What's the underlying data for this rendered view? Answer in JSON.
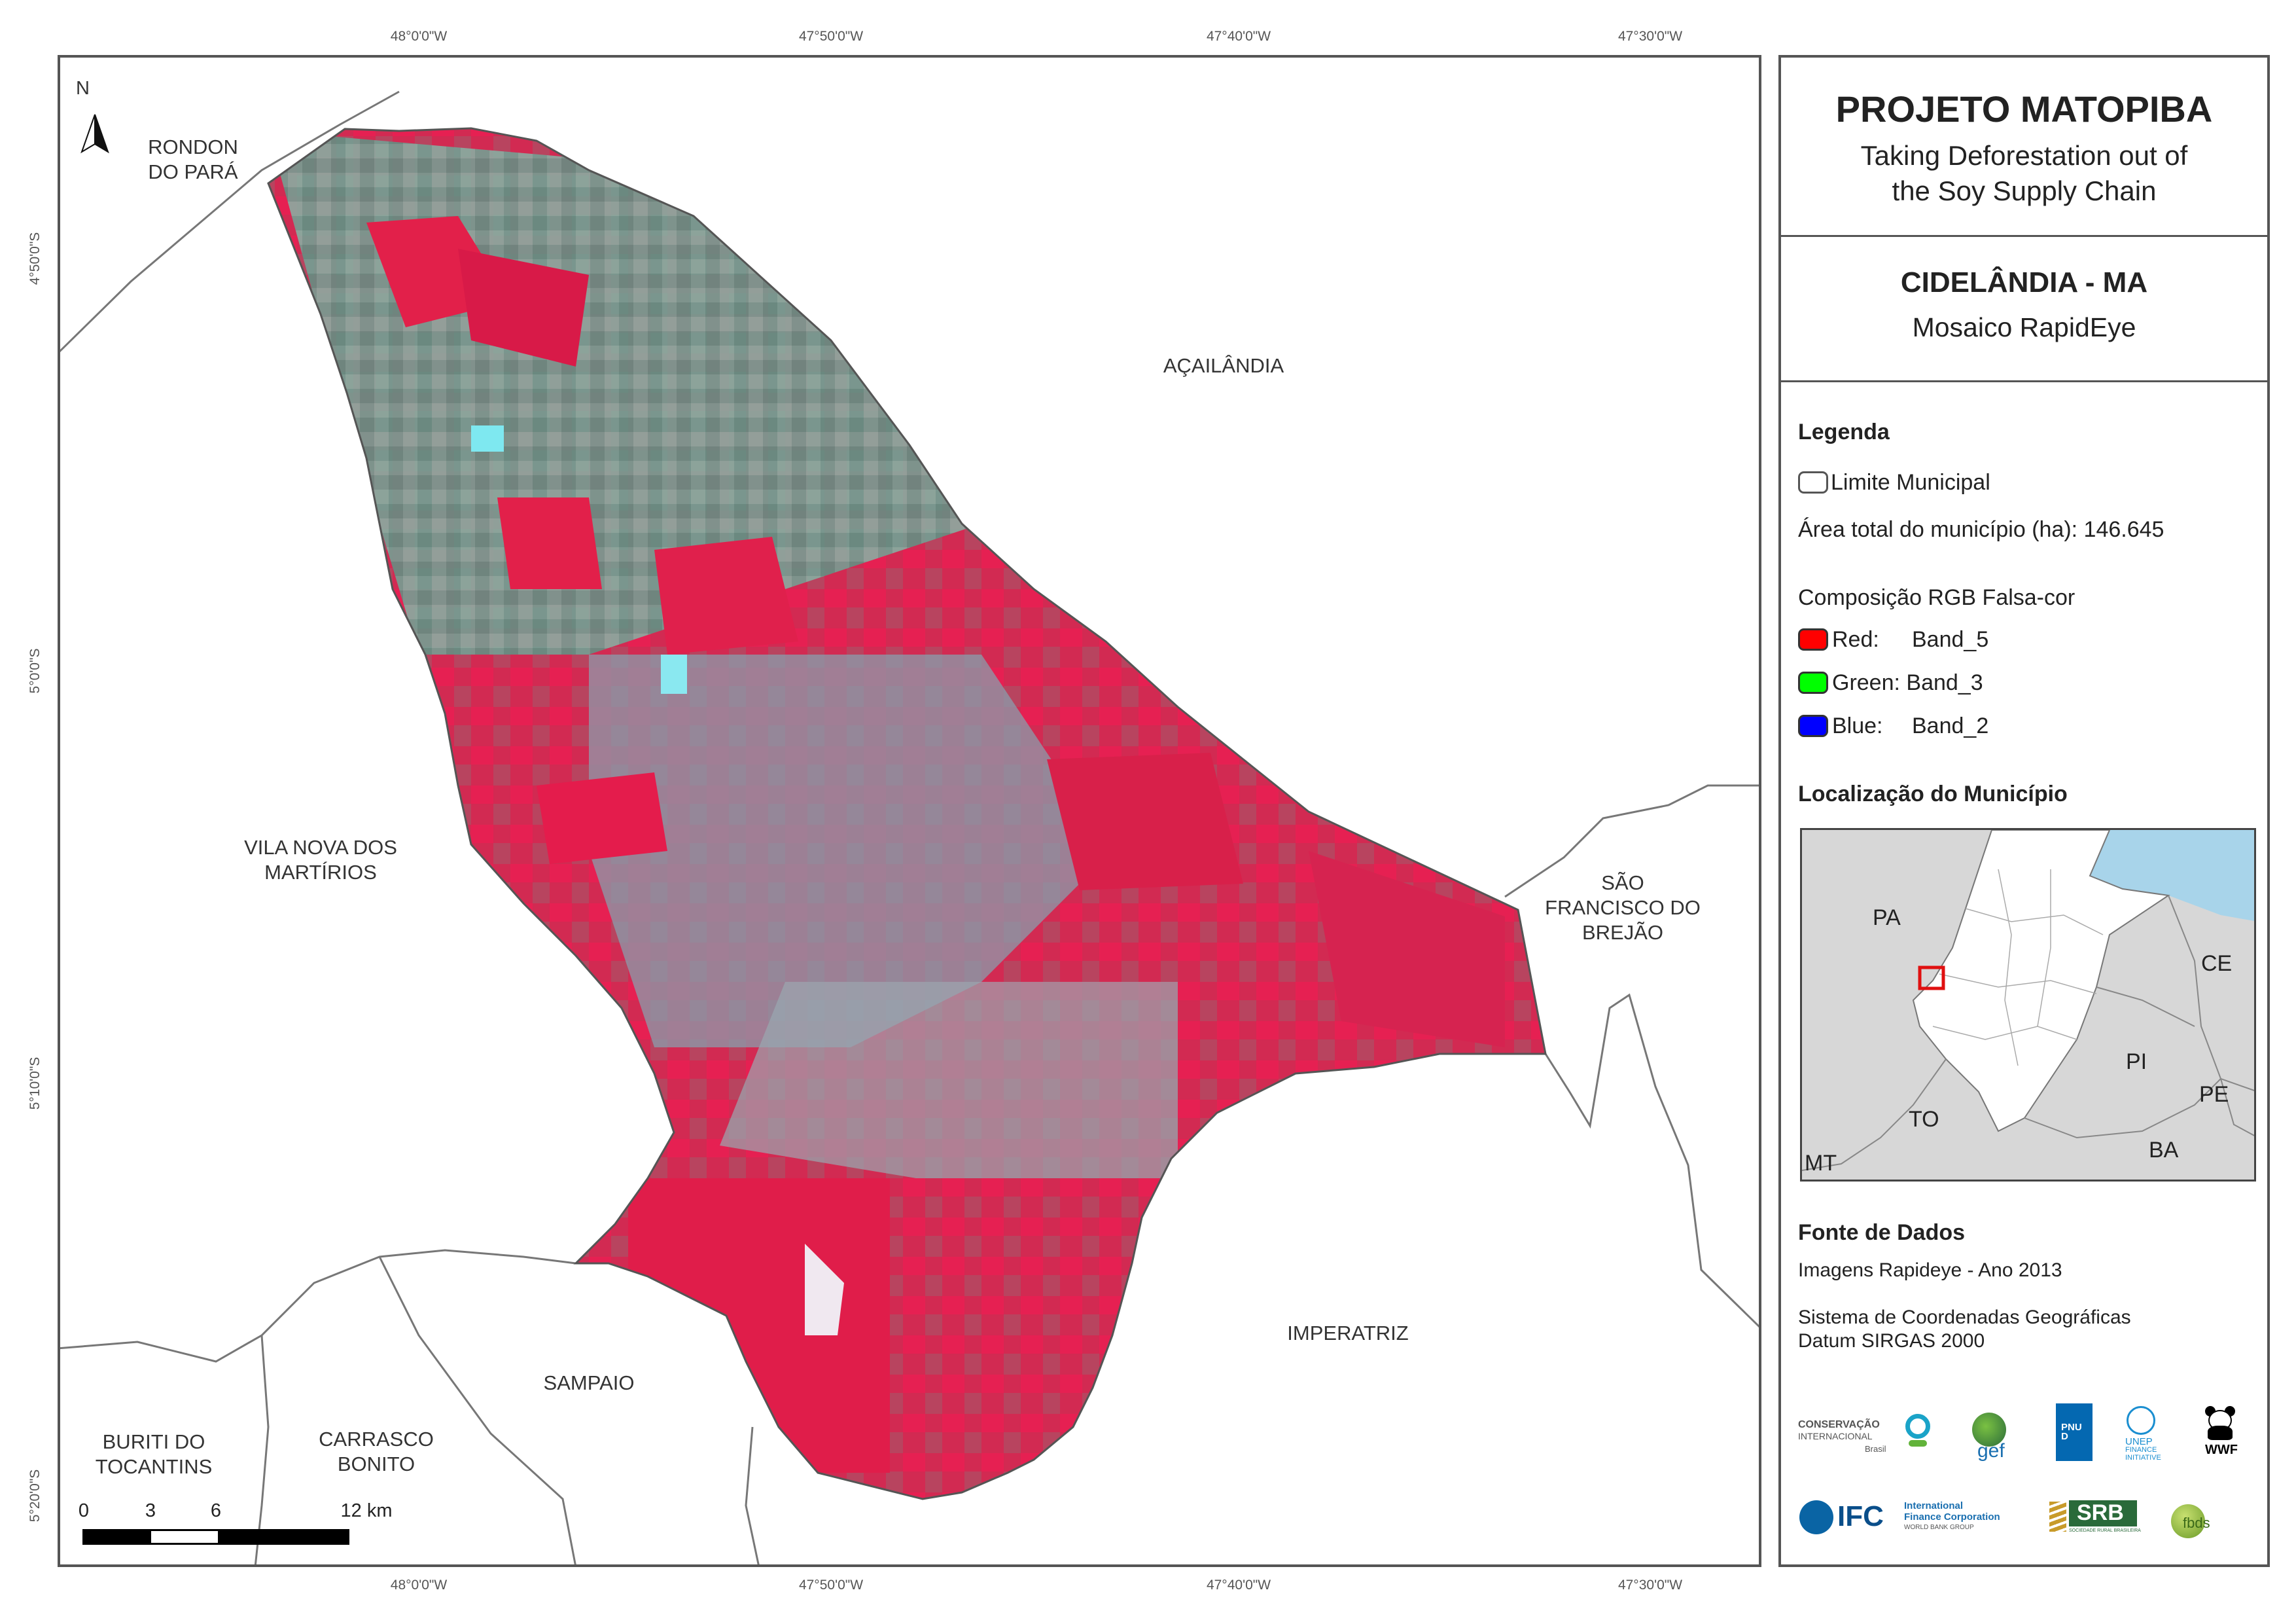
{
  "map": {
    "top_ticks": [
      "48°0'0\"W",
      "47°50'0\"W",
      "47°40'0\"W",
      "47°30'0\"W"
    ],
    "bottom_ticks": [
      "48°0'0\"W",
      "47°50'0\"W",
      "47°40'0\"W",
      "47°30'0\"W"
    ],
    "left_ticks": [
      "4°50'0\"S",
      "5°0'0\"S",
      "5°10'0\"S",
      "5°20'0\"S"
    ],
    "north_label": "N",
    "places": {
      "rondon": "RONDON\nDO PARÁ",
      "acailandia": "AÇAILÂNDIA",
      "vila_nova": "VILA NOVA DOS\nMARTÍRIOS",
      "sao_francisco": "SÃO\nFRANCISCO DO\nBREJÃO",
      "imperatriz": "IMPERATRIZ",
      "sampaio": "SAMPAIO",
      "buriti": "BURITI DO\nTOCANTINS",
      "carrasco": "CARRASCO\nBONITO"
    },
    "scale": {
      "labels": [
        "0",
        "3",
        "6",
        "12 km"
      ]
    }
  },
  "panel": {
    "title": "PROJETO MATOPIBA",
    "subtitle_line1": "Taking Deforestation out of",
    "subtitle_line2": "the Soy Supply Chain",
    "municipality": "CIDELÂNDIA - MA",
    "mosaic": "Mosaico RapidEye",
    "legend": {
      "heading": "Legenda",
      "limit": "Limite Municipal",
      "area": "Área total do município (ha): 146.645",
      "composition": "Composição RGB Falsa-cor",
      "red_label": "Red:",
      "red_band": "Band_5",
      "green_label": "Green: Band_3",
      "blue_label": "Blue:",
      "blue_band": "Band_2",
      "red_color": "#ff0000",
      "green_color": "#00ff00",
      "blue_color": "#0000ff"
    },
    "location": {
      "heading": "Localização do Município",
      "states": {
        "pa": "PA",
        "ce": "CE",
        "pi": "PI",
        "pe": "PE",
        "to": "TO",
        "ba": "BA",
        "mt": "MT"
      }
    },
    "sources": {
      "heading": "Fonte de Dados",
      "images": "Imagens Rapideye - Ano 2013",
      "system": "Sistema de Coordenadas Geográficas",
      "datum": "Datum SIRGAS 2000"
    },
    "logos": {
      "ci_line1": "CONSERVAÇÃO",
      "ci_line2": "INTERNACIONAL",
      "ci_line3": "Brasil",
      "gef": "gef",
      "pnud": "PNUD",
      "unep_line1": "UNEP",
      "unep_line2": "FINANCE",
      "unep_line3": "INITIATIVE",
      "wwf": "WWF",
      "ifc": "IFC",
      "ifc_line1": "International",
      "ifc_line2": "Finance Corporation",
      "ifc_line3": "WORLD BANK GROUP",
      "srb": "SRB",
      "srb_sub": "SOCIEDADE RURAL BRASILEIRA",
      "fbds": "fbds"
    }
  }
}
